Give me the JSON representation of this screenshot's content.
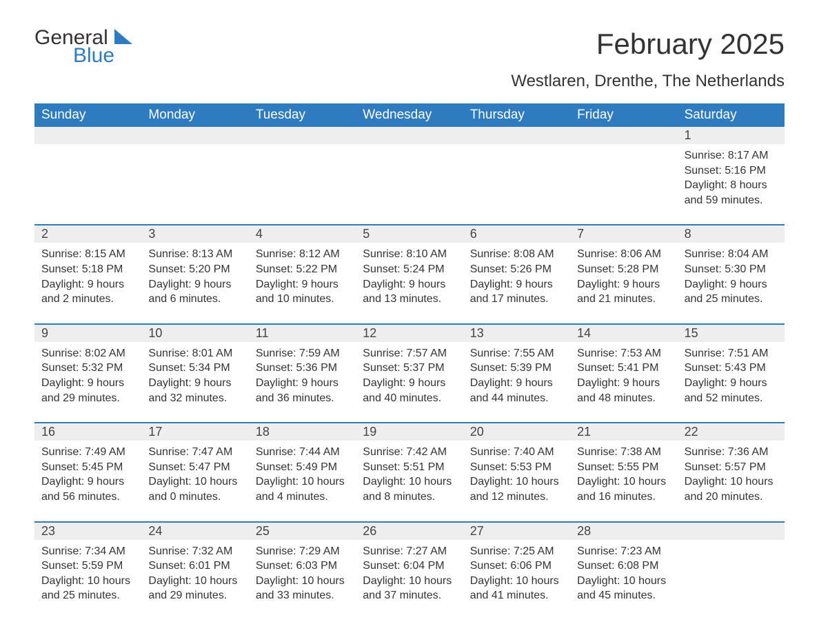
{
  "brand": {
    "line1": "General",
    "line2": "Blue"
  },
  "title": "February 2025",
  "subtitle": "Westlaren, Drenthe, The Netherlands",
  "colors": {
    "header_bg": "#2e7bc0",
    "header_text": "#ffffff",
    "daynum_bg": "#eeeeee",
    "text": "#333333",
    "page_bg": "#ffffff",
    "week_border": "#2e7bc0"
  },
  "typography": {
    "title_fontsize": 42,
    "subtitle_fontsize": 24,
    "dow_fontsize": 19,
    "daynum_fontsize": 18,
    "body_fontsize": 16
  },
  "layout": {
    "columns": 7,
    "rows": 5,
    "first_day_column_index": 6
  },
  "days_of_week": [
    "Sunday",
    "Monday",
    "Tuesday",
    "Wednesday",
    "Thursday",
    "Friday",
    "Saturday"
  ],
  "label_prefixes": {
    "sunrise": "Sunrise: ",
    "sunset": "Sunset: ",
    "daylight": "Daylight: "
  },
  "days": [
    {
      "n": 1,
      "sunrise": "8:17 AM",
      "sunset": "5:16 PM",
      "daylight": "8 hours and 59 minutes."
    },
    {
      "n": 2,
      "sunrise": "8:15 AM",
      "sunset": "5:18 PM",
      "daylight": "9 hours and 2 minutes."
    },
    {
      "n": 3,
      "sunrise": "8:13 AM",
      "sunset": "5:20 PM",
      "daylight": "9 hours and 6 minutes."
    },
    {
      "n": 4,
      "sunrise": "8:12 AM",
      "sunset": "5:22 PM",
      "daylight": "9 hours and 10 minutes."
    },
    {
      "n": 5,
      "sunrise": "8:10 AM",
      "sunset": "5:24 PM",
      "daylight": "9 hours and 13 minutes."
    },
    {
      "n": 6,
      "sunrise": "8:08 AM",
      "sunset": "5:26 PM",
      "daylight": "9 hours and 17 minutes."
    },
    {
      "n": 7,
      "sunrise": "8:06 AM",
      "sunset": "5:28 PM",
      "daylight": "9 hours and 21 minutes."
    },
    {
      "n": 8,
      "sunrise": "8:04 AM",
      "sunset": "5:30 PM",
      "daylight": "9 hours and 25 minutes."
    },
    {
      "n": 9,
      "sunrise": "8:02 AM",
      "sunset": "5:32 PM",
      "daylight": "9 hours and 29 minutes."
    },
    {
      "n": 10,
      "sunrise": "8:01 AM",
      "sunset": "5:34 PM",
      "daylight": "9 hours and 32 minutes."
    },
    {
      "n": 11,
      "sunrise": "7:59 AM",
      "sunset": "5:36 PM",
      "daylight": "9 hours and 36 minutes."
    },
    {
      "n": 12,
      "sunrise": "7:57 AM",
      "sunset": "5:37 PM",
      "daylight": "9 hours and 40 minutes."
    },
    {
      "n": 13,
      "sunrise": "7:55 AM",
      "sunset": "5:39 PM",
      "daylight": "9 hours and 44 minutes."
    },
    {
      "n": 14,
      "sunrise": "7:53 AM",
      "sunset": "5:41 PM",
      "daylight": "9 hours and 48 minutes."
    },
    {
      "n": 15,
      "sunrise": "7:51 AM",
      "sunset": "5:43 PM",
      "daylight": "9 hours and 52 minutes."
    },
    {
      "n": 16,
      "sunrise": "7:49 AM",
      "sunset": "5:45 PM",
      "daylight": "9 hours and 56 minutes."
    },
    {
      "n": 17,
      "sunrise": "7:47 AM",
      "sunset": "5:47 PM",
      "daylight": "10 hours and 0 minutes."
    },
    {
      "n": 18,
      "sunrise": "7:44 AM",
      "sunset": "5:49 PM",
      "daylight": "10 hours and 4 minutes."
    },
    {
      "n": 19,
      "sunrise": "7:42 AM",
      "sunset": "5:51 PM",
      "daylight": "10 hours and 8 minutes."
    },
    {
      "n": 20,
      "sunrise": "7:40 AM",
      "sunset": "5:53 PM",
      "daylight": "10 hours and 12 minutes."
    },
    {
      "n": 21,
      "sunrise": "7:38 AM",
      "sunset": "5:55 PM",
      "daylight": "10 hours and 16 minutes."
    },
    {
      "n": 22,
      "sunrise": "7:36 AM",
      "sunset": "5:57 PM",
      "daylight": "10 hours and 20 minutes."
    },
    {
      "n": 23,
      "sunrise": "7:34 AM",
      "sunset": "5:59 PM",
      "daylight": "10 hours and 25 minutes."
    },
    {
      "n": 24,
      "sunrise": "7:32 AM",
      "sunset": "6:01 PM",
      "daylight": "10 hours and 29 minutes."
    },
    {
      "n": 25,
      "sunrise": "7:29 AM",
      "sunset": "6:03 PM",
      "daylight": "10 hours and 33 minutes."
    },
    {
      "n": 26,
      "sunrise": "7:27 AM",
      "sunset": "6:04 PM",
      "daylight": "10 hours and 37 minutes."
    },
    {
      "n": 27,
      "sunrise": "7:25 AM",
      "sunset": "6:06 PM",
      "daylight": "10 hours and 41 minutes."
    },
    {
      "n": 28,
      "sunrise": "7:23 AM",
      "sunset": "6:08 PM",
      "daylight": "10 hours and 45 minutes."
    }
  ]
}
